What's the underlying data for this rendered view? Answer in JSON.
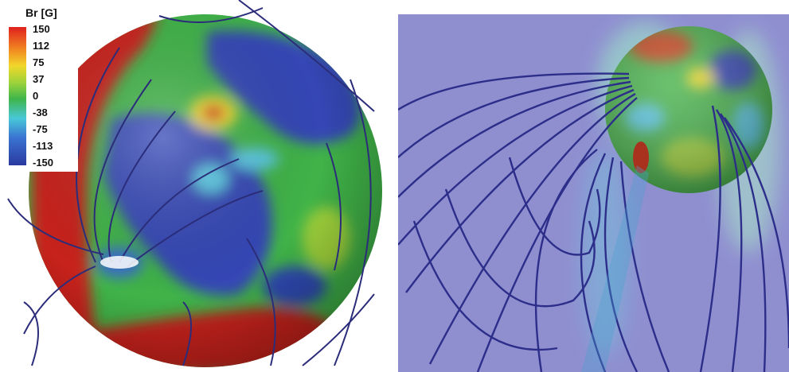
{
  "colorbar": {
    "title": "Br [G]",
    "ticks": [
      "150",
      "112",
      "75",
      "37",
      "0",
      "-38",
      "-75",
      "-113",
      "-150"
    ],
    "colors": [
      "#e0201e",
      "#f08020",
      "#f2d62a",
      "#9ed43a",
      "#3fb54a",
      "#48c8d8",
      "#3a73d2",
      "#2a3aa0"
    ]
  },
  "panels": [
    {
      "name": "left-sphere-view",
      "content": "sphere surface Br map with field lines"
    },
    {
      "name": "right-sphere-view",
      "content": "sphere with extended magnetic field line loops"
    }
  ]
}
